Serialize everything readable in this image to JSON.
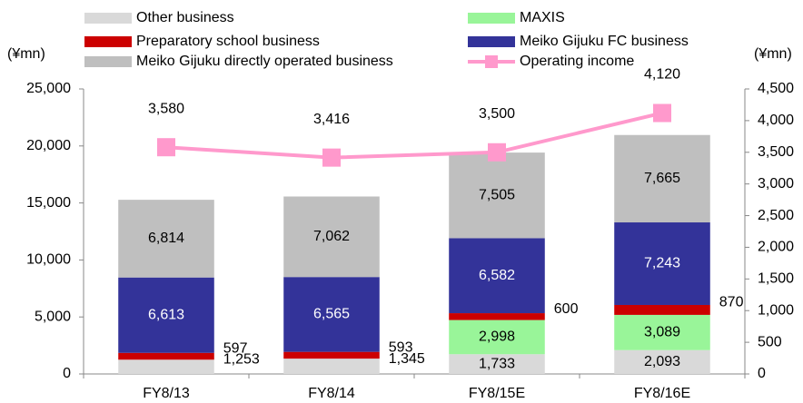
{
  "chart_data": {
    "type": "bar",
    "y_label": "(¥mn)",
    "y2_label": "(¥mn)",
    "categories": [
      "FY8/13",
      "FY8/14",
      "FY8/15E",
      "FY8/16E"
    ],
    "series": [
      {
        "name": "Other business",
        "color": "#d9d9d9",
        "values": [
          1253,
          1345,
          1733,
          2093
        ],
        "value_labels": [
          "1,253",
          "1,345",
          "1,733",
          "2,093"
        ]
      },
      {
        "name": "MAXIS",
        "color": "#99f599",
        "values": [
          null,
          null,
          2998,
          3089
        ],
        "value_labels": [
          null,
          null,
          "2,998",
          "3,089"
        ]
      },
      {
        "name": "Preparatory school business",
        "color": "#cc0000",
        "values": [
          597,
          593,
          600,
          870
        ]
      },
      {
        "name": "Meiko Gijuku FC business",
        "color": "#333399",
        "values": [
          6613,
          6565,
          6582,
          7243
        ],
        "value_labels": [
          "6,613",
          "6,565",
          "6,582",
          "7,243"
        ]
      },
      {
        "name": "Meiko Gijuku directly operated business",
        "color": "#bfbfbf",
        "values": [
          6814,
          7062,
          7505,
          7665
        ],
        "value_labels": [
          "6,814",
          "7,062",
          "7,505",
          "7,665"
        ]
      },
      {
        "name": "Operating income",
        "color": "#ff99cc",
        "type": "line",
        "axis": "y2",
        "values": [
          3580,
          3416,
          3500,
          4120
        ],
        "value_labels": [
          "3,580",
          "3,416",
          "3,500",
          "4,120"
        ]
      }
    ],
    "ylim": [
      0,
      25000
    ],
    "yticks": [
      0,
      {
        "value": 5000,
        "label": "5,000"
      },
      {
        "value": 10000,
        "label": "10,000"
      },
      {
        "value": 15000,
        "label": "15,000"
      },
      {
        "value": 20000,
        "label": "20,000"
      },
      {
        "value": 25000,
        "label": "25,000"
      }
    ],
    "y2lim": [
      0,
      4500
    ],
    "y2ticks": [
      0,
      500,
      {
        "value": 1000,
        "label": "1,000"
      },
      {
        "value": 1500,
        "label": "1,500"
      },
      {
        "value": 2000,
        "label": "2,000"
      },
      {
        "value": 2500,
        "label": "2,500"
      },
      {
        "value": 3000,
        "label": "3,000"
      },
      {
        "value": 3500,
        "label": "3,500"
      },
      {
        "value": 4000,
        "label": "4,000"
      },
      {
        "value": 4500,
        "label": "4,500"
      }
    ]
  }
}
